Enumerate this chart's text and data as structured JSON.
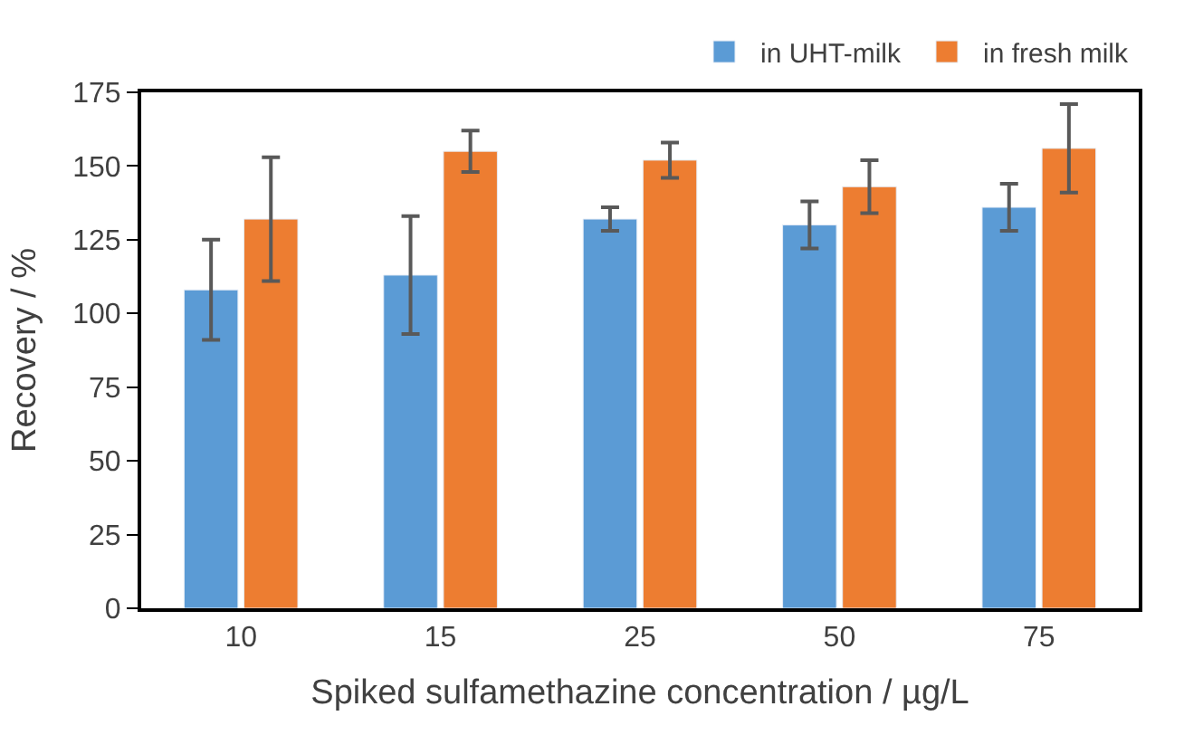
{
  "chart_data": {
    "type": "bar",
    "xlabel": "Spiked sulfamethazine concentration / µg/L",
    "ylabel": "Recovery / %",
    "categories": [
      "10",
      "15",
      "25",
      "50",
      "75"
    ],
    "series": [
      {
        "name": "in UHT-milk",
        "color": "#5b9bd5",
        "values": [
          108,
          113,
          132,
          130,
          136
        ],
        "errors": [
          17,
          20,
          4,
          8,
          8
        ]
      },
      {
        "name": "in fresh milk",
        "color": "#ed7d31",
        "values": [
          132,
          155,
          152,
          143,
          156
        ],
        "errors": [
          21,
          7,
          6,
          9,
          15
        ]
      }
    ],
    "ylim": [
      0,
      175
    ],
    "yticks": [
      0,
      25,
      50,
      75,
      100,
      125,
      150,
      175
    ],
    "legend": "top right"
  }
}
